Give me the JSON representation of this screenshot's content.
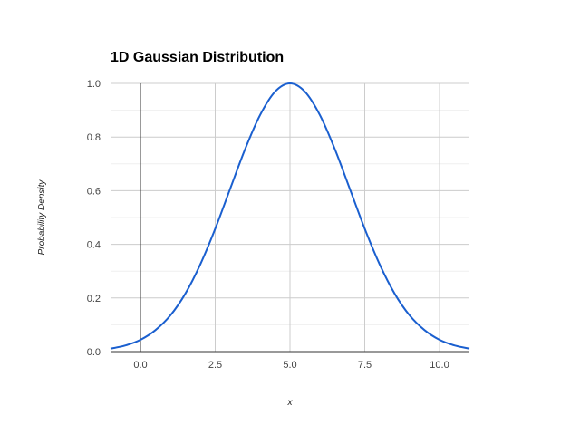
{
  "chart_data": {
    "type": "line",
    "title": "1D Gaussian Distribution",
    "xlabel": "x",
    "ylabel": "Probability Density",
    "xlim": [
      -1,
      11
    ],
    "ylim": [
      0,
      1
    ],
    "x_ticks": [
      "0.0",
      "2.5",
      "5.0",
      "7.5",
      "10.0"
    ],
    "x_tick_values": [
      0,
      2.5,
      5,
      7.5,
      10
    ],
    "y_ticks": [
      "0.0",
      "0.2",
      "0.4",
      "0.6",
      "0.8",
      "1.0"
    ],
    "y_tick_values": [
      0,
      0.2,
      0.4,
      0.6,
      0.8,
      1.0
    ],
    "grid": true,
    "legend": "none",
    "series": [
      {
        "color": "#1a5fcf",
        "x": [
          -1,
          -0.5,
          0,
          0.5,
          1,
          1.5,
          2,
          2.5,
          3,
          3.5,
          4,
          4.5,
          5,
          5.5,
          6,
          6.5,
          7,
          7.5,
          8,
          8.5,
          9,
          9.5,
          10,
          10.5,
          11
        ],
        "y": [
          0.011,
          0.023,
          0.044,
          0.08,
          0.135,
          0.216,
          0.325,
          0.458,
          0.607,
          0.755,
          0.882,
          0.969,
          1.0,
          0.969,
          0.882,
          0.755,
          0.607,
          0.458,
          0.325,
          0.216,
          0.135,
          0.08,
          0.044,
          0.023,
          0.011
        ]
      }
    ]
  }
}
